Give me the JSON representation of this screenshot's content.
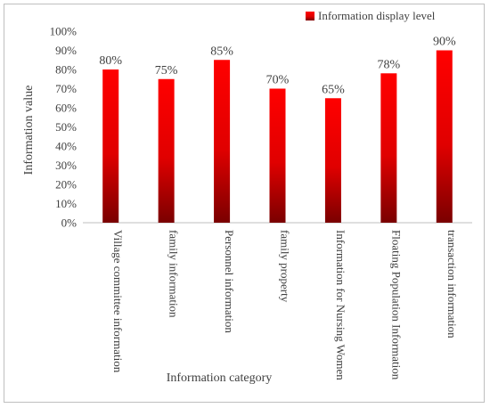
{
  "chart_data": {
    "type": "bar",
    "categories": [
      "Village committee information",
      "family information",
      "Personnel information",
      "family property",
      "Information for Nursing Women",
      "Floating Population Information",
      "transaction information"
    ],
    "series": [
      {
        "name": "Information display level",
        "values": [
          80,
          75,
          85,
          70,
          65,
          78,
          90
        ],
        "labels": [
          "80%",
          "75%",
          "85%",
          "70%",
          "65%",
          "78%",
          "90%"
        ]
      }
    ],
    "xlabel": "Information category",
    "ylabel": "Information value",
    "ylim": [
      0,
      100
    ],
    "yticks": [
      "0%",
      "10%",
      "20%",
      "30%",
      "40%",
      "50%",
      "60%",
      "70%",
      "80%",
      "90%",
      "100%"
    ],
    "grid": false,
    "legend": "top-right",
    "colors": {
      "bar_top": "#ff0000",
      "bar_bottom": "#7a0000"
    }
  }
}
